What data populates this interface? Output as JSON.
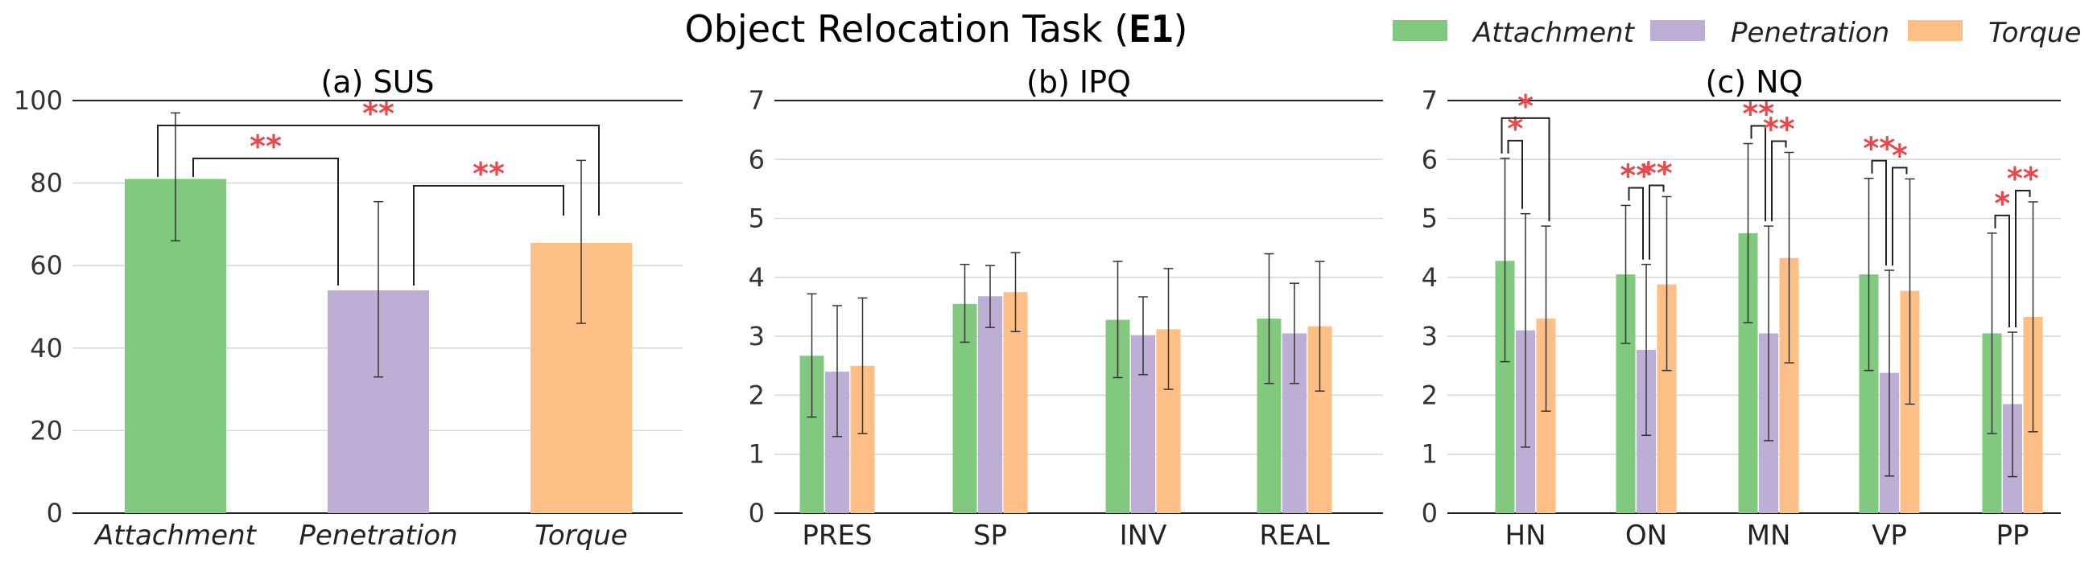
{
  "title": {
    "text": "Object Relocation Task (",
    "code": "E1",
    "close": ")"
  },
  "legend": [
    {
      "label": "Attachment",
      "color": "#80c97e"
    },
    {
      "label": "Penetration",
      "color": "#bcaed5"
    },
    {
      "label": "Torque",
      "color": "#fdbf86"
    }
  ],
  "chart_data": [
    {
      "type": "bar",
      "title": "(a) SUS",
      "categories": [
        "Attachment",
        "Penetration",
        "Torque"
      ],
      "categories_italic": true,
      "values": [
        81,
        54,
        65.5
      ],
      "errors": [
        [
          66,
          97
        ],
        [
          33,
          75.5
        ],
        [
          46,
          85.5
        ]
      ],
      "ylim": [
        0,
        100
      ],
      "yticks": [
        0,
        20,
        40,
        60,
        80,
        100
      ],
      "significance": [
        {
          "from": 0,
          "to": 1,
          "label": "**"
        },
        {
          "from": 0,
          "to": 2,
          "label": "**"
        },
        {
          "from": 1,
          "to": 2,
          "label": "**"
        }
      ]
    },
    {
      "type": "bar",
      "title": "(b) IPQ",
      "categories": [
        "PRES",
        "SP",
        "INV",
        "REAL"
      ],
      "series": [
        {
          "name": "Attachment",
          "values": [
            2.67,
            3.55,
            3.28,
            3.3
          ],
          "errors": [
            [
              1.63,
              3.72
            ],
            [
              2.9,
              4.22
            ],
            [
              2.3,
              4.27
            ],
            [
              2.2,
              4.4
            ]
          ]
        },
        {
          "name": "Penetration",
          "values": [
            2.4,
            3.68,
            3.02,
            3.05
          ],
          "errors": [
            [
              1.3,
              3.52
            ],
            [
              3.15,
              4.2
            ],
            [
              2.35,
              3.67
            ],
            [
              2.2,
              3.9
            ]
          ]
        },
        {
          "name": "Torque",
          "values": [
            2.5,
            3.75,
            3.12,
            3.17
          ],
          "errors": [
            [
              1.35,
              3.65
            ],
            [
              3.08,
              4.42
            ],
            [
              2.1,
              4.15
            ],
            [
              2.07,
              4.27
            ]
          ]
        }
      ],
      "ylim": [
        0,
        7
      ],
      "yticks": [
        0,
        1,
        2,
        3,
        4,
        5,
        6,
        7
      ]
    },
    {
      "type": "bar",
      "title": "(c) NQ",
      "categories": [
        "HN",
        "ON",
        "MN",
        "VP",
        "PP"
      ],
      "series": [
        {
          "name": "Attachment",
          "values": [
            4.28,
            4.05,
            4.75,
            4.05,
            3.05
          ],
          "errors": [
            [
              2.57,
              6.02
            ],
            [
              2.88,
              5.22
            ],
            [
              3.23,
              6.27
            ],
            [
              2.42,
              5.68
            ],
            [
              1.35,
              4.75
            ]
          ]
        },
        {
          "name": "Penetration",
          "values": [
            3.1,
            2.77,
            3.05,
            2.38,
            1.85
          ],
          "errors": [
            [
              1.12,
              5.08
            ],
            [
              1.32,
              4.22
            ],
            [
              1.23,
              4.87
            ],
            [
              0.63,
              4.12
            ],
            [
              0.62,
              3.07
            ]
          ]
        },
        {
          "name": "Torque",
          "values": [
            3.3,
            3.88,
            4.33,
            3.77,
            3.33
          ],
          "errors": [
            [
              1.73,
              4.87
            ],
            [
              2.42,
              5.37
            ],
            [
              2.55,
              6.12
            ],
            [
              1.85,
              5.67
            ],
            [
              1.38,
              5.28
            ]
          ]
        }
      ],
      "ylim": [
        0,
        7
      ],
      "yticks": [
        0,
        1,
        2,
        3,
        4,
        5,
        6,
        7
      ],
      "significance": [
        {
          "category": 0,
          "from": 0,
          "to": 1,
          "label": "*"
        },
        {
          "category": 0,
          "from": 0,
          "to": 2,
          "label": "*"
        },
        {
          "category": 1,
          "from": 0,
          "to": 1,
          "label": "**"
        },
        {
          "category": 1,
          "from": 1,
          "to": 2,
          "label": "**"
        },
        {
          "category": 2,
          "from": 0,
          "to": 1,
          "label": "**"
        },
        {
          "category": 2,
          "from": 1,
          "to": 2,
          "label": "**"
        },
        {
          "category": 3,
          "from": 0,
          "to": 1,
          "label": "**"
        },
        {
          "category": 3,
          "from": 1,
          "to": 2,
          "label": "*"
        },
        {
          "category": 4,
          "from": 0,
          "to": 1,
          "label": "*"
        },
        {
          "category": 4,
          "from": 1,
          "to": 2,
          "label": "**"
        }
      ]
    }
  ]
}
